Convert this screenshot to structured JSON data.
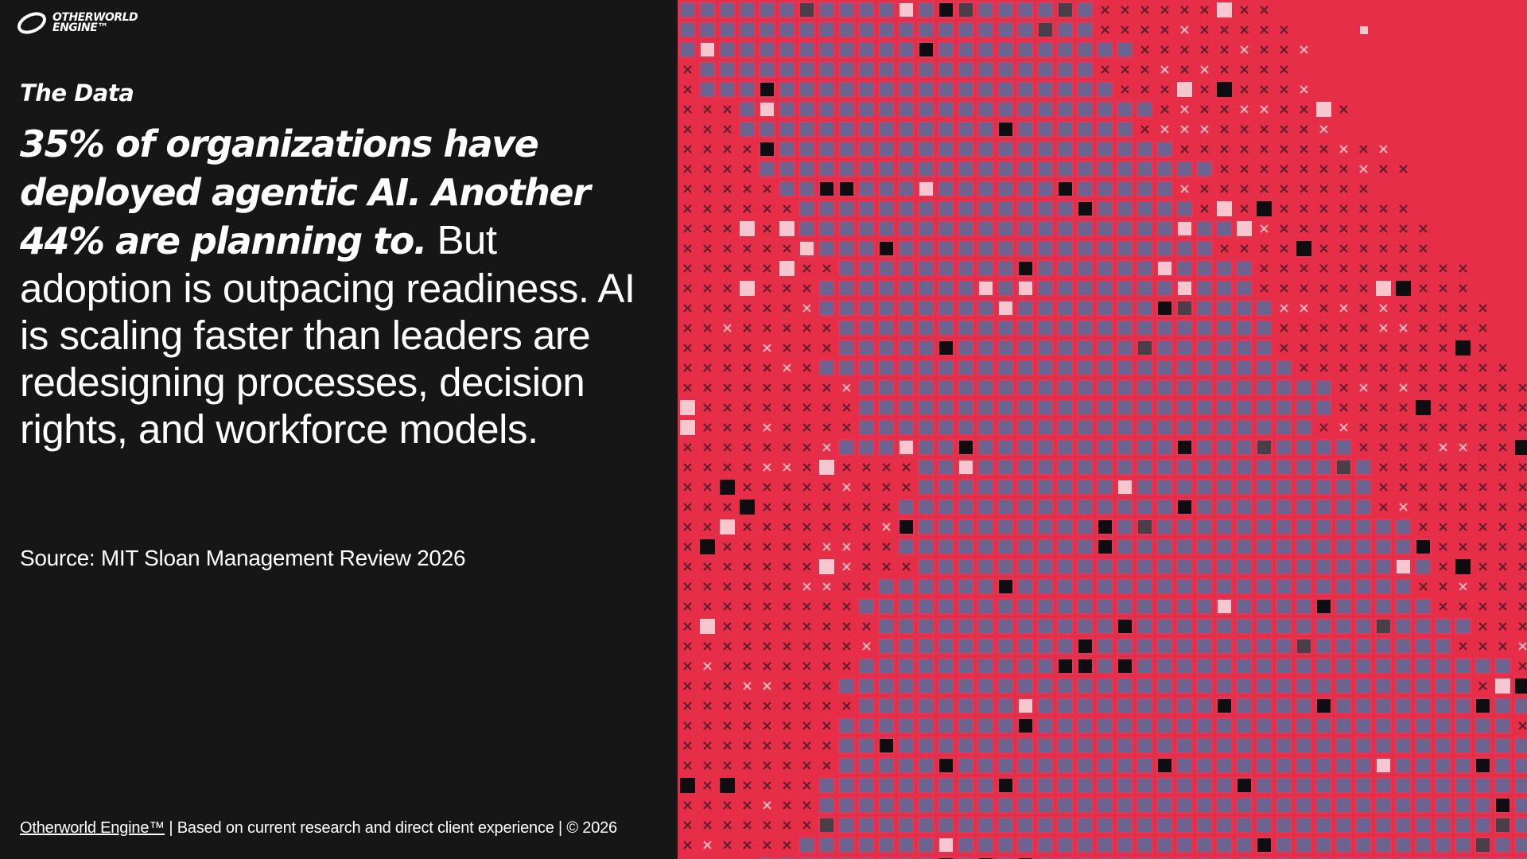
{
  "logo": {
    "line1": "OTHERWORLD",
    "line2": "ENGINE™"
  },
  "section_label": "The Data",
  "headline": {
    "emphasis": "35% of organizations have deployed agentic AI. Another 44% are planning to.",
    "rest": "But adoption is outpacing readiness. AI is scaling faster than leaders are redesigning processes, decision rights, and workforce models."
  },
  "source": "Source: MIT Sloan Management Review 2026",
  "footer": {
    "link": "Otherworld Engine™",
    "text": "| Based on current research and direct client experience | © 2026"
  }
}
